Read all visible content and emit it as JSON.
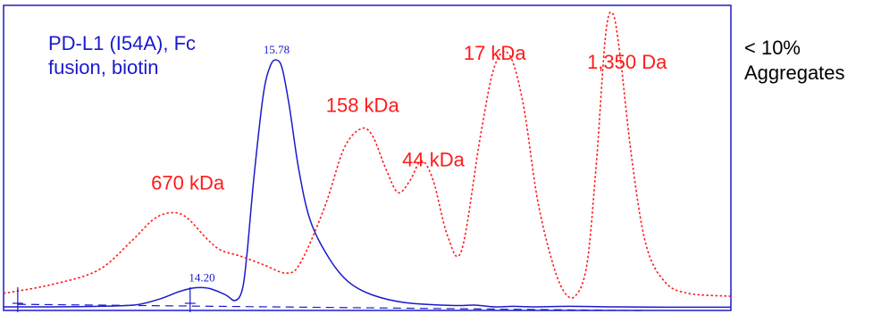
{
  "chart_data": {
    "type": "line",
    "title": "",
    "xlabel": "",
    "ylabel": "",
    "sample_label": [
      "PD-L1 (I54A), Fc",
      "fusion, biotin"
    ],
    "colors": {
      "sample": "#1a1acc",
      "standard": "#ff1a1a",
      "frame": "#1a1acc"
    },
    "xlim": [
      10,
      25.4
    ],
    "ylim": [
      0,
      100
    ],
    "series": [
      {
        "name": "",
        "style": "solid",
        "color": "#1a1acc",
        "x": [
          10.0,
          11.0,
          12.0,
          12.8,
          13.3,
          13.7,
          14.0,
          14.2,
          14.4,
          14.7,
          14.9,
          15.05,
          15.15,
          15.3,
          15.5,
          15.65,
          15.78,
          15.9,
          16.05,
          16.25,
          16.5,
          16.9,
          17.3,
          17.8,
          18.5,
          19.5,
          20.0,
          20.4,
          20.8,
          21.2,
          22.0,
          23.0,
          24.0,
          25.4
        ],
        "y": [
          0.3,
          0.3,
          0.5,
          1.0,
          3.0,
          5.5,
          6.8,
          7.0,
          6.5,
          4.5,
          2.5,
          6.0,
          18.0,
          45.0,
          74.0,
          84.0,
          86.0,
          83.0,
          70.0,
          48.0,
          30.0,
          17.0,
          9.0,
          4.5,
          1.8,
          0.8,
          0.9,
          0.3,
          0.5,
          0.3,
          0.5,
          0.3,
          0.2,
          0.2
        ]
      },
      {
        "name": "",
        "style": "dotted",
        "color": "#ff1a1a",
        "x": [
          10.0,
          11.0,
          12.0,
          12.7,
          13.2,
          13.6,
          13.9,
          14.3,
          14.6,
          15.0,
          15.5,
          16.0,
          16.3,
          16.8,
          17.2,
          17.55,
          17.8,
          18.1,
          18.35,
          18.6,
          18.85,
          19.1,
          19.4,
          19.7,
          20.1,
          20.4,
          20.7,
          21.0,
          21.3,
          21.6,
          21.85,
          22.1,
          22.35,
          22.55,
          22.75,
          22.9,
          23.05,
          23.3,
          23.6,
          24.0,
          24.5,
          25.4
        ],
        "y": [
          5.0,
          8.0,
          13.0,
          23.0,
          31.0,
          33.0,
          31.0,
          24.0,
          20.0,
          18.0,
          15.0,
          12.0,
          16.0,
          35.0,
          55.0,
          62.0,
          60.0,
          48.0,
          40.0,
          44.0,
          51.0,
          44.0,
          25.0,
          20.0,
          60.0,
          84.0,
          88.0,
          71.0,
          38.0,
          17.0,
          6.0,
          4.0,
          15.0,
          50.0,
          95.0,
          102.0,
          88.0,
          52.0,
          22.0,
          9.0,
          5.0,
          4.0
        ]
      }
    ],
    "integration_baseline": {
      "x": [
        10.3,
        23.6
      ],
      "y": [
        1.2,
        -1.0
      ]
    },
    "integration_ticks": [
      10.3,
      13.95
    ],
    "peak_labels": [
      {
        "text": "14.20",
        "x": 14.2,
        "y": 7.0
      },
      {
        "text": "15.78",
        "x": 15.78,
        "y": 86.0
      }
    ],
    "annotations": [
      {
        "text": "670 kDa",
        "x": 13.9,
        "y": 41
      },
      {
        "text": "158 kDa",
        "x": 17.6,
        "y": 68
      },
      {
        "text": "44 kDa",
        "x": 19.1,
        "y": 49
      },
      {
        "text": "17 kDa",
        "x": 20.4,
        "y": 86
      },
      {
        "text": "1,350 Da",
        "x": 23.2,
        "y": 83
      }
    ]
  },
  "side_note": [
    "< 10%",
    "Aggregates"
  ]
}
